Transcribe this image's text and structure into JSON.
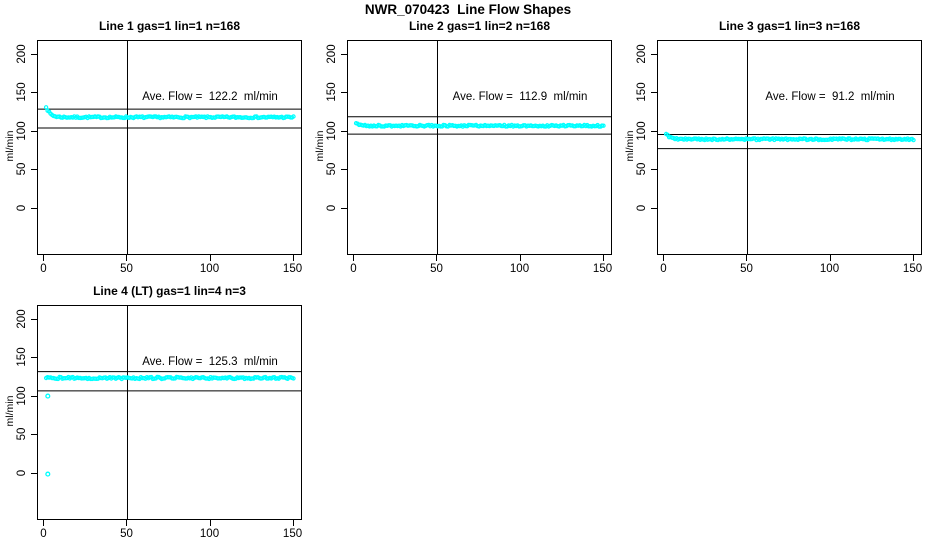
{
  "main_title": "NWR_070423  Line Flow Shapes",
  "colors": {
    "point_color": "#00ffff",
    "axis_color": "#000000",
    "background": "#ffffff",
    "text_color": "#000000"
  },
  "axes": {
    "x_ticks": [
      0,
      50,
      100,
      150
    ],
    "y_ticks": [
      0,
      50,
      100,
      150,
      200
    ],
    "y_axis_label": "ml/min",
    "x_range": [
      -3.9,
      154.5
    ],
    "y_range": [
      -58.2,
      217.8
    ],
    "vline_x": 50,
    "grid": false
  },
  "chart_data": [
    {
      "type": "scatter",
      "title": "Line 1 gas=1 lin=1 n=168",
      "ave_flow": 122.2,
      "ave_flow_label": "Ave. Flow =  122.2  ml/min",
      "n": 168,
      "points_drawn": 168,
      "x_start": 1,
      "x_end": 150,
      "start_value": 133,
      "flat_value": 119,
      "settle_tau": 2.5,
      "noise": 1.1,
      "ref_lines": [
        129.5,
        105.1
      ],
      "outliers": []
    },
    {
      "type": "scatter",
      "title": "Line 2 gas=1 lin=2 n=168",
      "ave_flow": 112.9,
      "ave_flow_label": "Ave. Flow =  112.9  ml/min",
      "n": 168,
      "points_drawn": 168,
      "x_start": 1,
      "x_end": 150,
      "start_value": 112,
      "flat_value": 108,
      "settle_tau": 2.0,
      "noise": 1.1,
      "ref_lines": [
        119.7,
        97.1
      ],
      "outliers": []
    },
    {
      "type": "scatter",
      "title": "Line 3 gas=1 lin=3 n=168",
      "ave_flow": 91.2,
      "ave_flow_label": "Ave. Flow =  91.2  ml/min",
      "n": 168,
      "points_drawn": 168,
      "x_start": 1,
      "x_end": 150,
      "start_value": 98,
      "flat_value": 90.5,
      "settle_tau": 2.5,
      "noise": 1.1,
      "ref_lines": [
        96.7,
        78.4
      ],
      "outliers": []
    },
    {
      "type": "scatter",
      "title": "Line 4 (LT) gas=1 lin=4 n=3",
      "ave_flow": 125.3,
      "ave_flow_label": "Ave. Flow =  125.3  ml/min",
      "n": 3,
      "points_drawn": 168,
      "x_start": 1,
      "x_end": 150,
      "start_value": 124.5,
      "flat_value": 124.5,
      "settle_tau": 1.0,
      "noise": 1.3,
      "ref_lines": [
        132.8,
        107.8
      ],
      "outliers": [
        [
          2,
          101
        ],
        [
          2,
          0
        ]
      ]
    }
  ]
}
